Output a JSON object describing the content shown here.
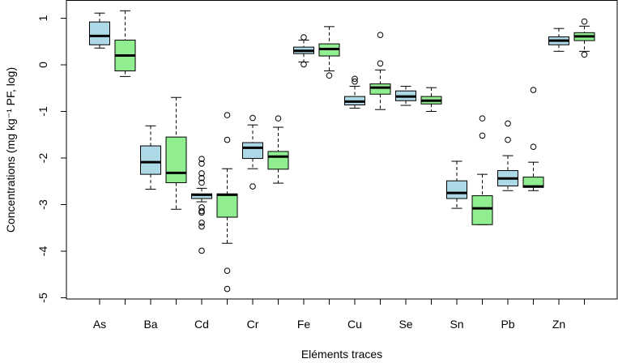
{
  "chart_data": {
    "type": "boxplot",
    "title": "",
    "xlabel": "Eléments traces",
    "ylabel": "Concentrations (mg kg⁻¹ PF, log)",
    "ylim": [
      -5,
      1.3
    ],
    "yticks": [
      1,
      0,
      -1,
      -2,
      -3,
      -4,
      -5
    ],
    "grid": false,
    "legend": "none",
    "categories": [
      "As",
      "Ba",
      "Cd",
      "Cr",
      "Fe",
      "Cu",
      "Se",
      "Sn",
      "Pb",
      "Zn"
    ],
    "series": [
      {
        "color": "#add8e6",
        "boxes": [
          {
            "whisker_low": 0.36,
            "q1": 0.43,
            "median": 0.62,
            "q3": 0.92,
            "whisker_high": 1.11,
            "outliers": []
          },
          {
            "whisker_low": -2.67,
            "q1": -2.35,
            "median": -2.09,
            "q3": -1.74,
            "whisker_high": -1.31,
            "outliers": []
          },
          {
            "whisker_low": -2.94,
            "q1": -2.87,
            "median": -2.79,
            "q3": -2.77,
            "whisker_high": -2.65,
            "outliers": [
              -2.02,
              -2.12,
              -2.33,
              -2.43,
              -2.53,
              -3.06,
              -3.14,
              -3.17,
              -3.39,
              -3.47,
              -3.99
            ]
          },
          {
            "whisker_low": -2.23,
            "q1": -2.01,
            "median": -1.78,
            "q3": -1.67,
            "whisker_high": -1.29,
            "outliers": [
              -1.14,
              -2.61
            ]
          },
          {
            "whisker_low": 0.06,
            "q1": 0.24,
            "median": 0.3,
            "q3": 0.38,
            "whisker_high": 0.53,
            "outliers": [
              0.59,
              0.01
            ]
          },
          {
            "whisker_low": -0.93,
            "q1": -0.86,
            "median": -0.79,
            "q3": -0.68,
            "whisker_high": -0.46,
            "outliers": [
              -0.3,
              -0.36
            ]
          },
          {
            "whisker_low": -0.87,
            "q1": -0.77,
            "median": -0.68,
            "q3": -0.56,
            "whisker_high": -0.46,
            "outliers": []
          },
          {
            "whisker_low": -3.08,
            "q1": -2.87,
            "median": -2.75,
            "q3": -2.49,
            "whisker_high": -2.07,
            "outliers": []
          },
          {
            "whisker_low": -2.7,
            "q1": -2.6,
            "median": -2.44,
            "q3": -2.27,
            "whisker_high": -1.95,
            "outliers": [
              -1.26,
              -1.61
            ]
          },
          {
            "whisker_low": 0.29,
            "q1": 0.43,
            "median": 0.52,
            "q3": 0.6,
            "whisker_high": 0.78,
            "outliers": []
          }
        ]
      },
      {
        "color": "#90ee90",
        "boxes": [
          {
            "whisker_low": -0.25,
            "q1": -0.13,
            "median": 0.2,
            "q3": 0.53,
            "whisker_high": 1.16,
            "outliers": []
          },
          {
            "whisker_low": -3.1,
            "q1": -2.53,
            "median": -2.32,
            "q3": -1.55,
            "whisker_high": -0.7,
            "outliers": []
          },
          {
            "whisker_low": -3.83,
            "q1": -3.27,
            "median": -2.79,
            "q3": -2.77,
            "whisker_high": -2.23,
            "outliers": [
              -1.08,
              -1.61,
              -4.42,
              -4.81
            ]
          },
          {
            "whisker_low": -2.54,
            "q1": -2.24,
            "median": -1.97,
            "q3": -1.86,
            "whisker_high": -1.34,
            "outliers": [
              -1.15
            ]
          },
          {
            "whisker_low": -0.13,
            "q1": 0.19,
            "median": 0.34,
            "q3": 0.45,
            "whisker_high": 0.82,
            "outliers": [
              -0.23
            ]
          },
          {
            "whisker_low": -0.96,
            "q1": -0.63,
            "median": -0.49,
            "q3": -0.41,
            "whisker_high": -0.11,
            "outliers": [
              0.64,
              0.03
            ]
          },
          {
            "whisker_low": -1.0,
            "q1": -0.84,
            "median": -0.77,
            "q3": -0.68,
            "whisker_high": -0.49,
            "outliers": []
          },
          {
            "whisker_low": -3.43,
            "q1": -3.43,
            "median": -3.08,
            "q3": -2.81,
            "whisker_high": -2.35,
            "outliers": [
              -1.15,
              -1.52
            ]
          },
          {
            "whisker_low": -2.7,
            "q1": -2.63,
            "median": -2.61,
            "q3": -2.41,
            "whisker_high": -2.09,
            "outliers": [
              -0.54,
              -1.76
            ]
          },
          {
            "whisker_low": 0.29,
            "q1": 0.52,
            "median": 0.61,
            "q3": 0.69,
            "whisker_high": 0.83,
            "outliers": [
              0.93,
              0.22
            ]
          }
        ]
      }
    ]
  }
}
